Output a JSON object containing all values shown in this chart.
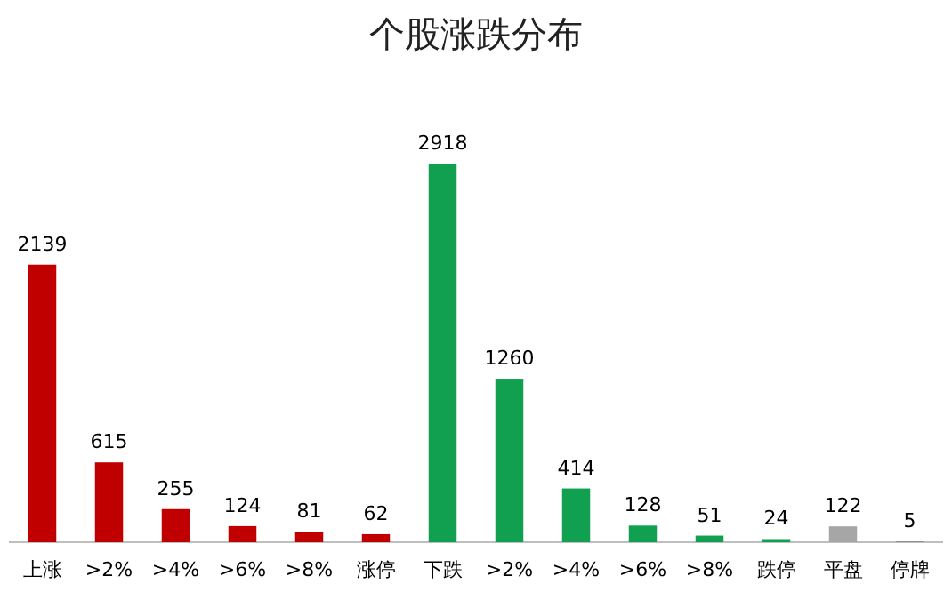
{
  "chart_data": {
    "type": "bar",
    "title": "个股涨跌分布",
    "categories": [
      "上涨",
      ">2%",
      ">4%",
      ">6%",
      ">8%",
      "涨停",
      "下跌",
      ">2%",
      ">4%",
      ">6%",
      ">8%",
      "跌停",
      "平盘",
      "停牌"
    ],
    "values": [
      2139,
      615,
      255,
      124,
      81,
      62,
      2918,
      1260,
      414,
      128,
      51,
      24,
      122,
      5
    ],
    "colors": [
      "#c00000",
      "#c00000",
      "#c00000",
      "#c00000",
      "#c00000",
      "#c00000",
      "#10a050",
      "#10a050",
      "#10a050",
      "#10a050",
      "#10a050",
      "#10a050",
      "#a6a6a6",
      "#7f7f7f"
    ],
    "data_labels": true
  }
}
